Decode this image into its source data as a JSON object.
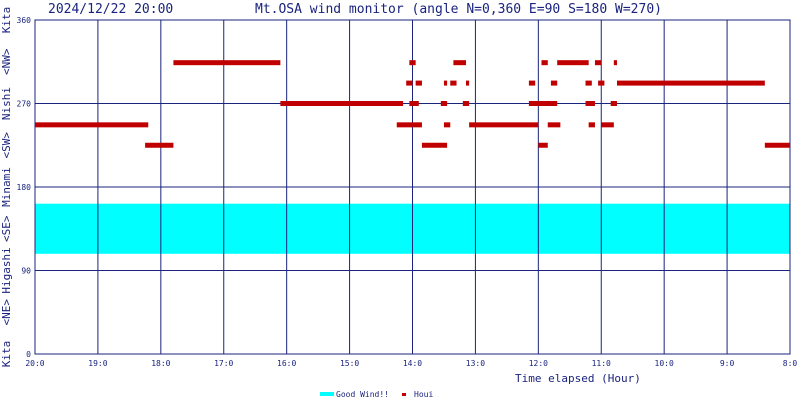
{
  "header": {
    "timestamp": "2024/12/22 20:00",
    "title": "Mt.OSA wind monitor (angle N=0,360 E=90 S=180 W=270)"
  },
  "colors": {
    "grid": "#1a237e",
    "good_band": "#00ffff",
    "houi": "#c00000",
    "text": "#1a237e"
  },
  "chart_data": {
    "type": "scatter",
    "xlabel": "Time elapsed (Hour)",
    "ylabel_segments": [
      "Kita",
      "<NE>",
      "Higashi",
      "<SE>",
      "Minami",
      "<SW>",
      "Nishi",
      "<NW>",
      "Kita"
    ],
    "x_ticks": [
      "20:0",
      "19:0",
      "18:0",
      "17:0",
      "16:0",
      "15:0",
      "14:0",
      "13:0",
      "12:0",
      "11:0",
      "10:0",
      "9:0",
      "8:0"
    ],
    "y_ticks": [
      0,
      90,
      180,
      270,
      360
    ],
    "ylim": [
      0,
      360
    ],
    "xlim_hours": [
      0,
      12
    ],
    "x_direction": "time elapsed increases to the right (20:00 back to 8:00)",
    "good_wind_range": [
      108,
      162
    ],
    "legend": {
      "position": "bottom-center",
      "items": [
        {
          "label": "Good Wind!!",
          "color": "#00ffff"
        },
        {
          "label": "Houi",
          "color": "#c00000"
        }
      ]
    },
    "series": [
      {
        "name": "Houi",
        "segments": [
          {
            "from": 0.0,
            "to": 1.8,
            "deg": 247
          },
          {
            "from": 1.75,
            "to": 2.2,
            "deg": 225
          },
          {
            "from": 2.2,
            "to": 3.9,
            "deg": 314
          },
          {
            "from": 3.9,
            "to": 5.85,
            "deg": 270
          },
          {
            "from": 5.75,
            "to": 6.15,
            "deg": 247
          },
          {
            "from": 5.9,
            "to": 6.0,
            "deg": 292
          },
          {
            "from": 5.95,
            "to": 6.05,
            "deg": 314
          },
          {
            "from": 5.95,
            "to": 6.1,
            "deg": 270
          },
          {
            "from": 6.05,
            "to": 6.15,
            "deg": 292
          },
          {
            "from": 6.15,
            "to": 6.55,
            "deg": 225
          },
          {
            "from": 6.45,
            "to": 6.55,
            "deg": 270
          },
          {
            "from": 6.5,
            "to": 6.55,
            "deg": 292
          },
          {
            "from": 6.5,
            "to": 6.6,
            "deg": 247
          },
          {
            "from": 6.6,
            "to": 6.7,
            "deg": 292
          },
          {
            "from": 6.65,
            "to": 6.85,
            "deg": 314
          },
          {
            "from": 6.8,
            "to": 6.9,
            "deg": 270
          },
          {
            "from": 6.85,
            "to": 6.9,
            "deg": 292
          },
          {
            "from": 6.9,
            "to": 8.0,
            "deg": 247
          },
          {
            "from": 7.85,
            "to": 7.95,
            "deg": 292
          },
          {
            "from": 7.85,
            "to": 8.3,
            "deg": 270
          },
          {
            "from": 8.0,
            "to": 8.15,
            "deg": 225
          },
          {
            "from": 8.05,
            "to": 8.15,
            "deg": 314
          },
          {
            "from": 8.15,
            "to": 8.35,
            "deg": 247
          },
          {
            "from": 8.2,
            "to": 8.3,
            "deg": 292
          },
          {
            "from": 8.3,
            "to": 8.8,
            "deg": 314
          },
          {
            "from": 8.75,
            "to": 8.85,
            "deg": 292
          },
          {
            "from": 8.75,
            "to": 8.9,
            "deg": 270
          },
          {
            "from": 8.8,
            "to": 8.9,
            "deg": 247
          },
          {
            "from": 8.9,
            "to": 9.0,
            "deg": 314
          },
          {
            "from": 8.95,
            "to": 9.05,
            "deg": 292
          },
          {
            "from": 9.0,
            "to": 9.2,
            "deg": 247
          },
          {
            "from": 9.15,
            "to": 9.25,
            "deg": 270
          },
          {
            "from": 9.2,
            "to": 9.25,
            "deg": 314
          },
          {
            "from": 9.25,
            "to": 11.6,
            "deg": 292
          },
          {
            "from": 11.6,
            "to": 12.0,
            "deg": 225
          }
        ]
      }
    ]
  }
}
